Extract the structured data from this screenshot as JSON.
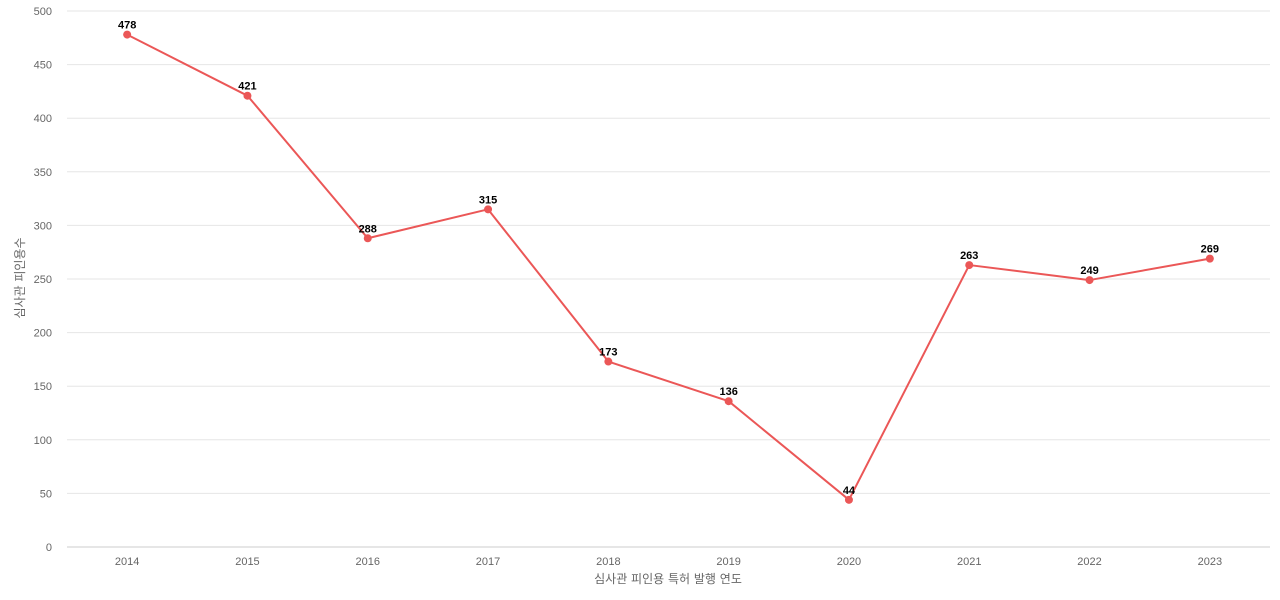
{
  "chart_data": {
    "type": "line",
    "title": "",
    "xlabel": "심사관 피인용 특허 발행 연도",
    "ylabel": "심사관 피인용수",
    "categories": [
      "2014",
      "2015",
      "2016",
      "2017",
      "2018",
      "2019",
      "2020",
      "2021",
      "2022",
      "2023"
    ],
    "series": [
      {
        "values": [
          478,
          421,
          288,
          315,
          173,
          136,
          44,
          263,
          249,
          269
        ],
        "color": "#eb5757"
      }
    ],
    "ylim": [
      0,
      500
    ],
    "yticks": [
      0,
      50,
      100,
      150,
      200,
      250,
      300,
      350,
      400,
      450,
      500
    ],
    "grid": true,
    "legend": "none",
    "data_labels": true
  }
}
